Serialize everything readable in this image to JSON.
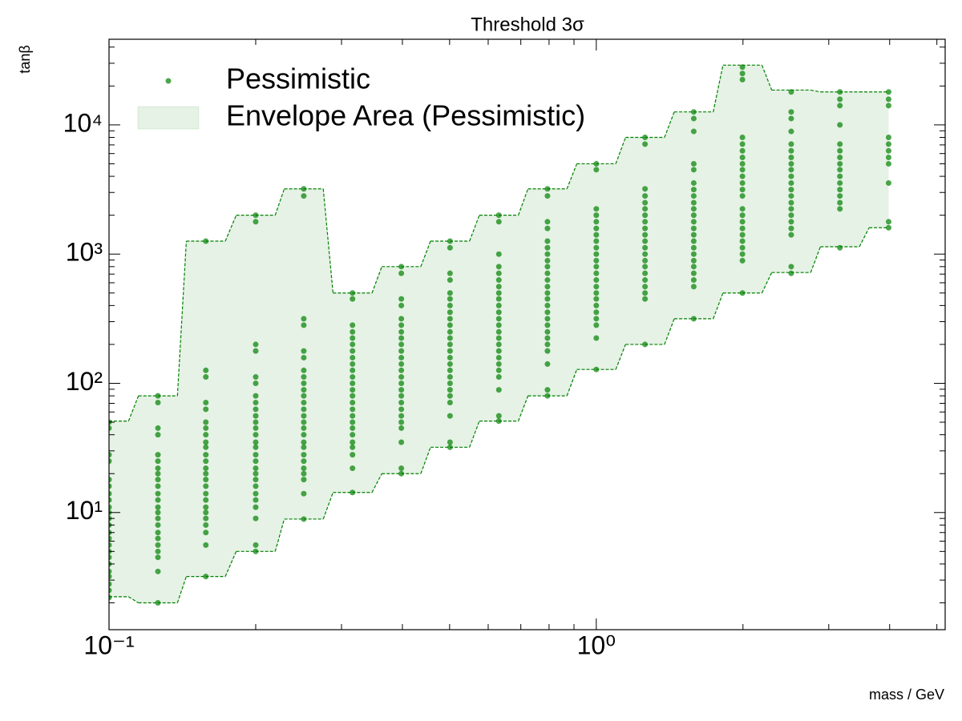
{
  "chart_data": {
    "type": "scatter",
    "title": "Threshold 3σ",
    "xlabel": "mass / GeV",
    "ylabel": "tanβ",
    "xscale": "log",
    "yscale": "log",
    "legend": "upper left",
    "xlim": [
      0.1,
      5.2
    ],
    "ylim": [
      1.24,
      46000
    ],
    "xticks": [
      {
        "value": 0.1,
        "label": "10⁻¹"
      },
      {
        "value": 1,
        "label": "10⁰"
      }
    ],
    "xminorticks": [
      0.2,
      0.3,
      0.4,
      0.5,
      0.6,
      0.7,
      0.8,
      0.9,
      2,
      3,
      4,
      5
    ],
    "yticks": [
      {
        "value": 10,
        "label": "10¹"
      },
      {
        "value": 100,
        "label": "10²"
      },
      {
        "value": 1000,
        "label": "10³"
      },
      {
        "value": 10000,
        "label": "10⁴"
      }
    ],
    "yminorticks": [
      2,
      3,
      4,
      5,
      6,
      7,
      8,
      9,
      20,
      30,
      40,
      50,
      60,
      70,
      80,
      90,
      200,
      300,
      400,
      500,
      600,
      700,
      800,
      900,
      2000,
      3000,
      4000,
      5000,
      6000,
      7000,
      8000,
      9000,
      20000,
      30000,
      40000
    ],
    "series": [
      {
        "name": "Pessimistic",
        "type": "scatter",
        "color": "#008000",
        "x": [
          0.1,
          0.126,
          0.158,
          0.2,
          0.251,
          0.316,
          0.398,
          0.501,
          0.631,
          0.794,
          1.0,
          1.259,
          1.585,
          1.995,
          2.512,
          3.162,
          3.981
        ],
        "values": [
          [
            50,
            45,
            28,
            25,
            18,
            16,
            14,
            12.5,
            11,
            10,
            9,
            8,
            7,
            6.3,
            5.6,
            5,
            4.5,
            4,
            3.5,
            3.2,
            2.8,
            2.5,
            2.2
          ],
          [
            80,
            71,
            45,
            40,
            28,
            25,
            22,
            20,
            18,
            16,
            14,
            12.5,
            11,
            10,
            9,
            8,
            7,
            6.3,
            5.6,
            5,
            4.5,
            3.5,
            2.0
          ],
          [
            1260,
            126,
            112,
            71,
            63,
            50,
            45,
            40,
            35,
            32,
            28,
            25,
            22,
            20,
            18,
            16,
            14,
            12.5,
            11,
            10,
            9,
            8,
            7,
            5.6,
            3.2
          ],
          [
            2000,
            1780,
            200,
            178,
            112,
            100,
            80,
            71,
            63,
            56,
            50,
            45,
            40,
            35,
            32,
            28,
            25,
            22,
            20,
            18,
            16,
            14,
            12.5,
            11,
            9,
            5.6,
            5.0
          ],
          [
            3200,
            2820,
            316,
            282,
            178,
            158,
            126,
            112,
            100,
            89,
            80,
            71,
            63,
            56,
            50,
            45,
            40,
            35,
            32,
            28,
            25,
            22,
            20,
            18,
            14,
            8.9
          ],
          [
            500,
            450,
            282,
            250,
            224,
            200,
            178,
            158,
            141,
            126,
            112,
            100,
            89,
            80,
            71,
            63,
            56,
            50,
            45,
            40,
            35,
            32,
            28,
            22,
            14.3
          ],
          [
            800,
            710,
            450,
            400,
            316,
            282,
            250,
            224,
            200,
            178,
            158,
            141,
            126,
            112,
            100,
            89,
            80,
            71,
            63,
            56,
            50,
            45,
            35,
            22,
            20
          ],
          [
            1260,
            1120,
            710,
            630,
            500,
            450,
            400,
            355,
            316,
            282,
            250,
            224,
            200,
            178,
            158,
            141,
            126,
            112,
            100,
            89,
            80,
            71,
            56,
            35,
            32
          ],
          [
            2000,
            1780,
            1000,
            800,
            710,
            630,
            560,
            500,
            450,
            400,
            355,
            316,
            282,
            250,
            224,
            200,
            178,
            158,
            141,
            126,
            112,
            89,
            56,
            51
          ],
          [
            3200,
            2820,
            1780,
            1580,
            1260,
            1120,
            1000,
            890,
            800,
            710,
            630,
            560,
            500,
            450,
            400,
            355,
            316,
            282,
            250,
            224,
            200,
            178,
            141,
            89,
            80
          ],
          [
            5000,
            4500,
            2240,
            2000,
            1780,
            1580,
            1410,
            1260,
            1120,
            1000,
            890,
            800,
            710,
            630,
            560,
            500,
            450,
            400,
            355,
            316,
            282,
            224,
            128
          ],
          [
            8000,
            7100,
            3200,
            2820,
            2500,
            2240,
            2000,
            1780,
            1580,
            1410,
            1260,
            1120,
            1000,
            890,
            800,
            710,
            630,
            560,
            500,
            450,
            200
          ],
          [
            12600,
            11200,
            8900,
            5000,
            4500,
            3550,
            3160,
            2820,
            2500,
            2240,
            2000,
            1780,
            1580,
            1410,
            1260,
            1120,
            1000,
            890,
            800,
            710,
            630,
            560,
            316
          ],
          [
            28000,
            25000,
            22400,
            8000,
            7100,
            6300,
            5600,
            5000,
            4500,
            4000,
            3550,
            3160,
            2820,
            2240,
            2000,
            1780,
            1580,
            1410,
            1260,
            1120,
            1000,
            890,
            500
          ],
          [
            18000,
            12600,
            11200,
            8900,
            7100,
            6300,
            5600,
            5000,
            4500,
            4000,
            3550,
            3160,
            2820,
            2500,
            2240,
            2000,
            1780,
            1580,
            1410,
            800,
            710
          ],
          [
            18000,
            15800,
            14100,
            10000,
            7100,
            6300,
            5600,
            5000,
            4500,
            4000,
            3550,
            3160,
            2820,
            2500,
            2240,
            1120
          ],
          [
            18000,
            15800,
            14100,
            8000,
            7100,
            6300,
            5600,
            5000,
            3550,
            1780,
            1600
          ]
        ]
      },
      {
        "name": "Envelope Area (Pessimistic)",
        "type": "area",
        "color": "#008000",
        "x": [
          0.1,
          0.126,
          0.158,
          0.2,
          0.251,
          0.316,
          0.398,
          0.501,
          0.631,
          0.794,
          1.0,
          1.259,
          1.585,
          1.995,
          2.512,
          3.162,
          3.981
        ],
        "upper": [
          51,
          80,
          1260,
          2000,
          3200,
          500,
          800,
          1260,
          2000,
          3200,
          5000,
          8000,
          12600,
          29000,
          18600,
          18000,
          18000
        ],
        "lower": [
          2.23,
          2.0,
          3.2,
          5.0,
          8.9,
          14.3,
          20,
          32,
          51,
          80,
          128,
          200,
          316,
          500,
          720,
          1140,
          1600
        ]
      }
    ]
  }
}
